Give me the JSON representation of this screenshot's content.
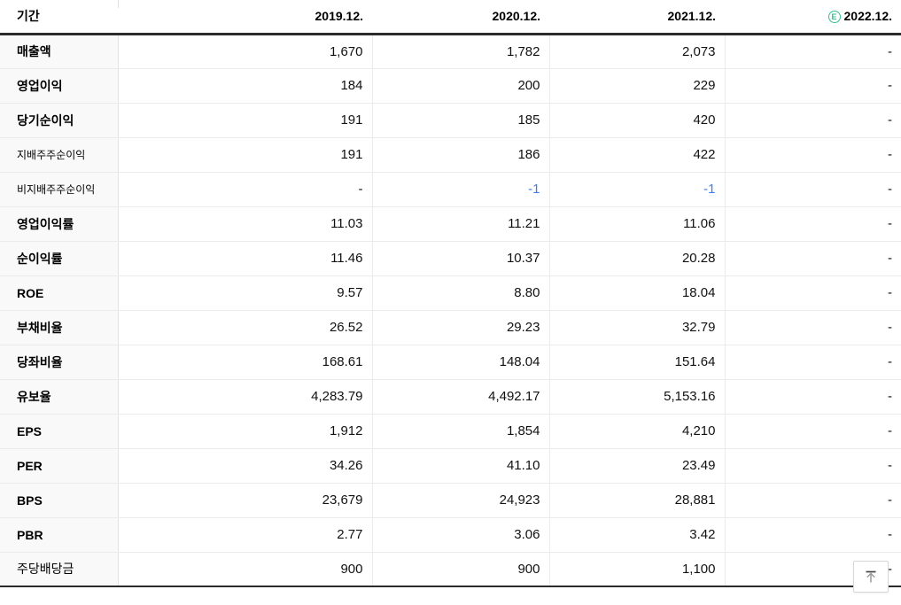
{
  "table": {
    "period_label": "기간",
    "estimate_icon": "E",
    "columns": [
      {
        "label": "2019.12.",
        "estimate": false
      },
      {
        "label": "2020.12.",
        "estimate": false
      },
      {
        "label": "2021.12.",
        "estimate": false
      },
      {
        "label": "2022.12.",
        "estimate": true
      }
    ],
    "rows": [
      {
        "label": "매출액",
        "style": "main",
        "values": [
          "1,670",
          "1,782",
          "2,073",
          "-"
        ]
      },
      {
        "label": "영업이익",
        "style": "main",
        "values": [
          "184",
          "200",
          "229",
          "-"
        ]
      },
      {
        "label": "당기순이익",
        "style": "main",
        "values": [
          "191",
          "185",
          "420",
          "-"
        ]
      },
      {
        "label": "지배주주순이익",
        "style": "sub",
        "values": [
          "191",
          "186",
          "422",
          "-"
        ]
      },
      {
        "label": "비지배주주순이익",
        "style": "sub",
        "values": [
          "-",
          "-1",
          "-1",
          "-"
        ]
      },
      {
        "label": "영업이익률",
        "style": "main",
        "values": [
          "11.03",
          "11.21",
          "11.06",
          "-"
        ]
      },
      {
        "label": "순이익률",
        "style": "main",
        "values": [
          "11.46",
          "10.37",
          "20.28",
          "-"
        ]
      },
      {
        "label": "ROE",
        "style": "main",
        "values": [
          "9.57",
          "8.80",
          "18.04",
          "-"
        ]
      },
      {
        "label": "부채비율",
        "style": "main",
        "values": [
          "26.52",
          "29.23",
          "32.79",
          "-"
        ]
      },
      {
        "label": "당좌비율",
        "style": "main",
        "values": [
          "168.61",
          "148.04",
          "151.64",
          "-"
        ]
      },
      {
        "label": "유보율",
        "style": "main",
        "values": [
          "4,283.79",
          "4,492.17",
          "5,153.16",
          "-"
        ]
      },
      {
        "label": "EPS",
        "style": "main",
        "values": [
          "1,912",
          "1,854",
          "4,210",
          "-"
        ]
      },
      {
        "label": "PER",
        "style": "main",
        "values": [
          "34.26",
          "41.10",
          "23.49",
          "-"
        ]
      },
      {
        "label": "BPS",
        "style": "main",
        "values": [
          "23,679",
          "24,923",
          "28,881",
          "-"
        ]
      },
      {
        "label": "PBR",
        "style": "main",
        "values": [
          "2.77",
          "3.06",
          "3.42",
          "-"
        ]
      },
      {
        "label": "주당배당금",
        "style": "plain",
        "values": [
          "900",
          "900",
          "1,100",
          "-"
        ]
      }
    ]
  },
  "colors": {
    "negative_value": "#3f7de8",
    "estimate_green": "#32c08e",
    "header_rule": "#2b2b2b",
    "row_label_bg": "#f9f9f9",
    "grid_line": "#ebebeb"
  },
  "icons": {
    "estimate": "estimate-e-icon",
    "scroll_top": "arrow-to-top-icon"
  }
}
